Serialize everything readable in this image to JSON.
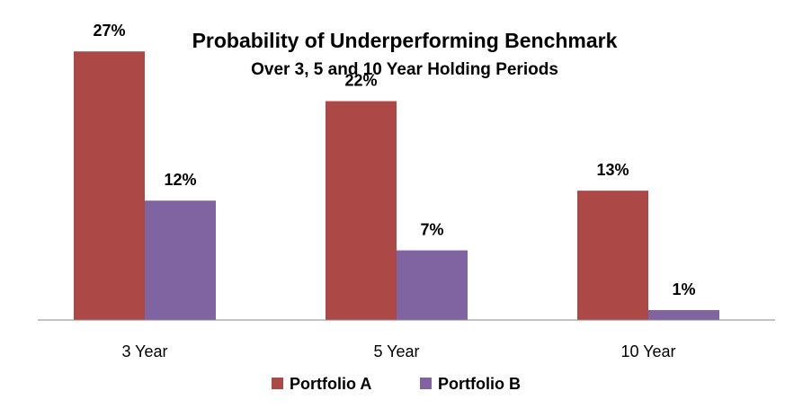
{
  "chart_data": {
    "type": "bar",
    "title": "Probability of Underperforming Benchmark",
    "subtitle": "Over 3, 5 and 10 Year Holding Periods",
    "categories": [
      "3 Year",
      "5 Year",
      "10 Year"
    ],
    "series": [
      {
        "name": "Portfolio A",
        "color": "#AC4846",
        "values": [
          27,
          22,
          13
        ],
        "labels": [
          "27%",
          "22%",
          "13%"
        ]
      },
      {
        "name": "Portfolio B",
        "color": "#8064A2",
        "values": [
          12,
          7,
          1
        ],
        "labels": [
          "12%",
          "7%",
          "1%"
        ]
      }
    ],
    "ylim": [
      0,
      30
    ],
    "grid": false,
    "legend_position": "bottom"
  }
}
